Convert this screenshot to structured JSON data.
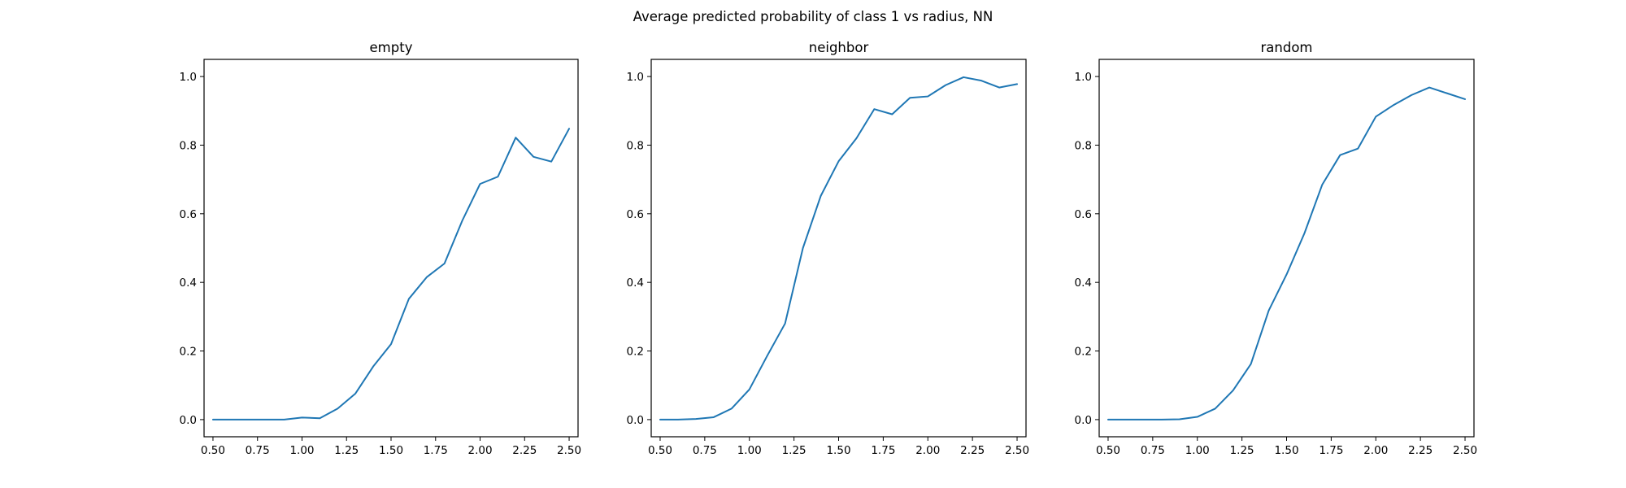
{
  "figure_title": "Average predicted probability of class 1 vs radius, NN",
  "chart_data": [
    {
      "type": "line",
      "title": "empty",
      "xlabel": "",
      "ylabel": "",
      "xlim": [
        0.45,
        2.55
      ],
      "ylim": [
        -0.05,
        1.05
      ],
      "xticks": [
        "0.50",
        "0.75",
        "1.00",
        "1.25",
        "1.50",
        "1.75",
        "2.00",
        "2.25",
        "2.50"
      ],
      "yticks": [
        "0.0",
        "0.2",
        "0.4",
        "0.6",
        "0.8",
        "1.0"
      ],
      "grid": false,
      "color": "#1f77b4",
      "x": [
        0.5,
        0.6,
        0.7,
        0.8,
        0.9,
        1.0,
        1.1,
        1.2,
        1.3,
        1.4,
        1.5,
        1.6,
        1.7,
        1.8,
        1.9,
        2.0,
        2.1,
        2.2,
        2.3,
        2.4,
        2.5
      ],
      "y": [
        0.0,
        0.0,
        0.0,
        0.0,
        0.0,
        0.006,
        0.004,
        0.032,
        0.076,
        0.155,
        0.22,
        0.352,
        0.415,
        0.455,
        0.58,
        0.687,
        0.708,
        0.822,
        0.766,
        0.752,
        0.848
      ]
    },
    {
      "type": "line",
      "title": "neighbor",
      "xlabel": "",
      "ylabel": "",
      "xlim": [
        0.45,
        2.55
      ],
      "ylim": [
        -0.05,
        1.05
      ],
      "xticks": [
        "0.50",
        "0.75",
        "1.00",
        "1.25",
        "1.50",
        "1.75",
        "2.00",
        "2.25",
        "2.50"
      ],
      "yticks": [
        "0.0",
        "0.2",
        "0.4",
        "0.6",
        "0.8",
        "1.0"
      ],
      "grid": false,
      "color": "#1f77b4",
      "x": [
        0.5,
        0.6,
        0.7,
        0.8,
        0.9,
        1.0,
        1.1,
        1.2,
        1.3,
        1.4,
        1.5,
        1.6,
        1.7,
        1.8,
        1.9,
        2.0,
        2.1,
        2.2,
        2.3,
        2.4,
        2.5
      ],
      "y": [
        0.0,
        0.0,
        0.002,
        0.007,
        0.032,
        0.088,
        0.186,
        0.28,
        0.5,
        0.652,
        0.753,
        0.82,
        0.905,
        0.89,
        0.938,
        0.942,
        0.975,
        0.998,
        0.988,
        0.968,
        0.978
      ]
    },
    {
      "type": "line",
      "title": "random",
      "xlabel": "",
      "ylabel": "",
      "xlim": [
        0.45,
        2.55
      ],
      "ylim": [
        -0.05,
        1.05
      ],
      "xticks": [
        "0.50",
        "0.75",
        "1.00",
        "1.25",
        "1.50",
        "1.75",
        "2.00",
        "2.25",
        "2.50"
      ],
      "yticks": [
        "0.0",
        "0.2",
        "0.4",
        "0.6",
        "0.8",
        "1.0"
      ],
      "grid": false,
      "color": "#1f77b4",
      "x": [
        0.5,
        0.6,
        0.7,
        0.8,
        0.9,
        1.0,
        1.1,
        1.2,
        1.3,
        1.4,
        1.5,
        1.6,
        1.7,
        1.8,
        1.9,
        2.0,
        2.1,
        2.2,
        2.3,
        2.4,
        2.5
      ],
      "y": [
        0.0,
        0.0,
        0.0,
        0.0,
        0.001,
        0.008,
        0.032,
        0.085,
        0.162,
        0.318,
        0.423,
        0.543,
        0.685,
        0.771,
        0.79,
        0.883,
        0.917,
        0.946,
        0.968,
        0.951,
        0.934
      ]
    }
  ]
}
